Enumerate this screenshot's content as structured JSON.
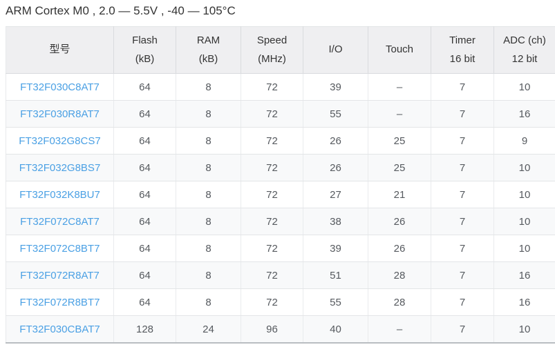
{
  "page_title": "ARM Cortex M0 , 2.0 — 5.5V , -40 — 105°C",
  "colors": {
    "link": "#4aa0e4",
    "header_bg": "#efeff1",
    "stripe_bg": "#f8f9fa",
    "cell_text": "#55595e",
    "title_text": "#333333"
  },
  "table": {
    "columns": [
      {
        "key": "model",
        "lines": [
          "型号"
        ]
      },
      {
        "key": "flash",
        "lines": [
          "Flash",
          "(kB)"
        ]
      },
      {
        "key": "ram",
        "lines": [
          "RAM",
          "(kB)"
        ]
      },
      {
        "key": "speed",
        "lines": [
          "Speed",
          "(MHz)"
        ]
      },
      {
        "key": "io",
        "lines": [
          "I/O"
        ]
      },
      {
        "key": "touch",
        "lines": [
          "Touch"
        ]
      },
      {
        "key": "timer",
        "lines": [
          "Timer",
          "16 bit"
        ]
      },
      {
        "key": "adc",
        "lines": [
          "ADC (ch)",
          "12 bit"
        ]
      }
    ],
    "rows": [
      {
        "model": "FT32F030C8AT7",
        "flash": "64",
        "ram": "8",
        "speed": "72",
        "io": "39",
        "touch": "–",
        "timer": "7",
        "adc": "10"
      },
      {
        "model": "FT32F030R8AT7",
        "flash": "64",
        "ram": "8",
        "speed": "72",
        "io": "55",
        "touch": "–",
        "timer": "7",
        "adc": "16"
      },
      {
        "model": "FT32F032G8CS7",
        "flash": "64",
        "ram": "8",
        "speed": "72",
        "io": "26",
        "touch": "25",
        "timer": "7",
        "adc": "9"
      },
      {
        "model": "FT32F032G8BS7",
        "flash": "64",
        "ram": "8",
        "speed": "72",
        "io": "26",
        "touch": "25",
        "timer": "7",
        "adc": "10"
      },
      {
        "model": "FT32F032K8BU7",
        "flash": "64",
        "ram": "8",
        "speed": "72",
        "io": "27",
        "touch": "21",
        "timer": "7",
        "adc": "10"
      },
      {
        "model": "FT32F072C8AT7",
        "flash": "64",
        "ram": "8",
        "speed": "72",
        "io": "38",
        "touch": "26",
        "timer": "7",
        "adc": "10"
      },
      {
        "model": "FT32F072C8BT7",
        "flash": "64",
        "ram": "8",
        "speed": "72",
        "io": "39",
        "touch": "26",
        "timer": "7",
        "adc": "10"
      },
      {
        "model": "FT32F072R8AT7",
        "flash": "64",
        "ram": "8",
        "speed": "72",
        "io": "51",
        "touch": "28",
        "timer": "7",
        "adc": "16"
      },
      {
        "model": "FT32F072R8BT7",
        "flash": "64",
        "ram": "8",
        "speed": "72",
        "io": "55",
        "touch": "28",
        "timer": "7",
        "adc": "16"
      },
      {
        "model": "FT32F030CBAT7",
        "flash": "128",
        "ram": "24",
        "speed": "96",
        "io": "40",
        "touch": "–",
        "timer": "7",
        "adc": "10"
      }
    ]
  }
}
